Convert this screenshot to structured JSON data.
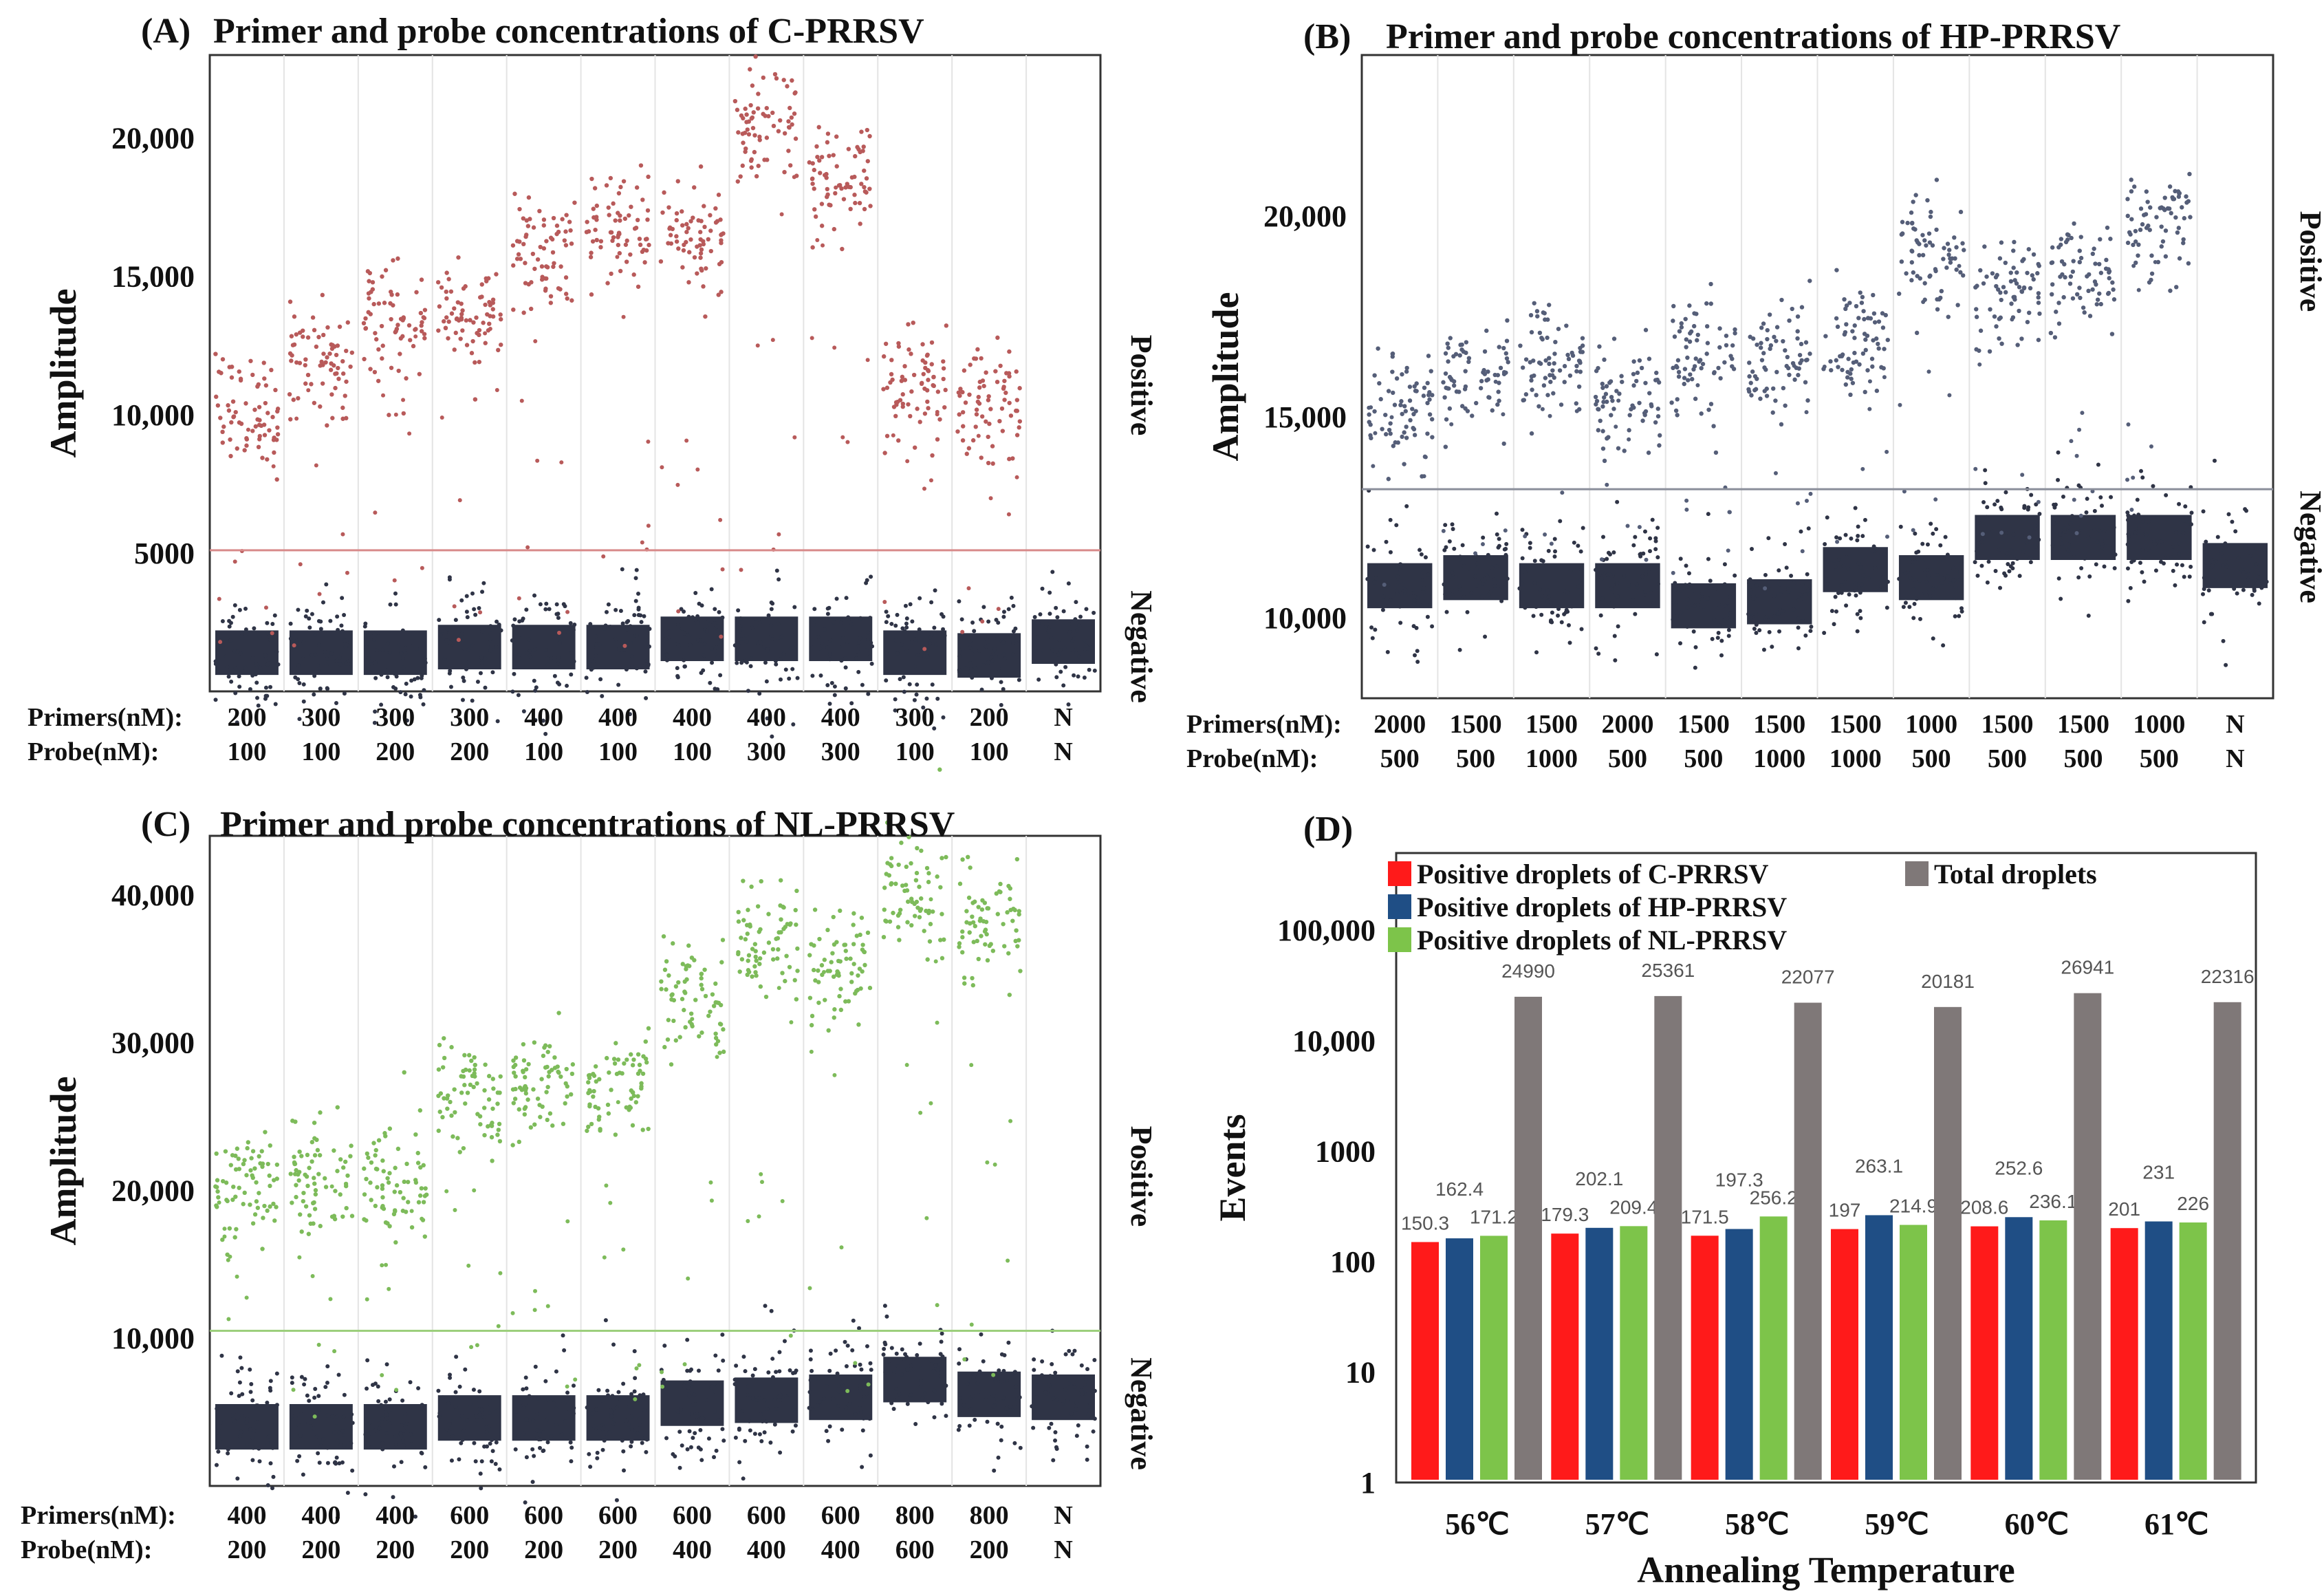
{
  "chart_data": [
    {
      "id": "A",
      "type": "scatter",
      "panel_label": "(A)",
      "title": "Primer and probe concentrations of C-PRRSV",
      "ylabel": "Amplitude",
      "ylim": [
        0,
        23000
      ],
      "yticks": [
        {
          "v": 5000,
          "t": "5000"
        },
        {
          "v": 10000,
          "t": "10,000"
        },
        {
          "v": 15000,
          "t": "15,000"
        },
        {
          "v": 20000,
          "t": "20,000"
        }
      ],
      "threshold": 5100,
      "positive_label": "Positive",
      "negative_label": "Negative",
      "row1_label": "Primers(nM):",
      "row2_label": "Probe(nM):",
      "primers": [
        "200",
        "300",
        "300",
        "300",
        "400",
        "400",
        "400",
        "400",
        "400",
        "300",
        "200",
        "N"
      ],
      "probes": [
        "100",
        "100",
        "200",
        "200",
        "100",
        "100",
        "100",
        "300",
        "300",
        "100",
        "100",
        "N"
      ],
      "positive_centers": [
        10000,
        12000,
        13500,
        13500,
        16000,
        16500,
        16500,
        20500,
        18500,
        11000,
        10500,
        null
      ],
      "negative_levels": [
        1400,
        1400,
        1400,
        1600,
        1600,
        1600,
        1900,
        1900,
        1900,
        1400,
        1300,
        1800
      ],
      "pos_color": "#b85a5a",
      "neg_color": "#2f3446",
      "line_color": "#d88a8a"
    },
    {
      "id": "B",
      "type": "scatter",
      "panel_label": "(B)",
      "title": "Primer and probe concentrations of HP-PRRSV",
      "ylabel": "Amplitude",
      "ylim": [
        8000,
        24000
      ],
      "yticks": [
        {
          "v": 10000,
          "t": "10,000"
        },
        {
          "v": 15000,
          "t": "15,000"
        },
        {
          "v": 20000,
          "t": "20,000"
        }
      ],
      "threshold": 13200,
      "positive_label": "Positive",
      "negative_label": "Negative",
      "row1_label": "Primers(nM):",
      "row2_label": "Probe(nM):",
      "primers": [
        "2000",
        "1500",
        "1500",
        "2000",
        "1500",
        "1500",
        "1500",
        "1000",
        "1500",
        "1500",
        "1000",
        "N"
      ],
      "probes": [
        "500",
        "500",
        "1000",
        "500",
        "500",
        "1000",
        "1000",
        "500",
        "500",
        "500",
        "500",
        "N"
      ],
      "positive_centers": [
        15300,
        16000,
        16500,
        15500,
        16500,
        16500,
        16800,
        19000,
        18000,
        18500,
        19800,
        null
      ],
      "negative_levels": [
        10800,
        11000,
        10800,
        10800,
        10300,
        10400,
        11200,
        11000,
        12000,
        12000,
        12000,
        11300
      ],
      "pos_color": "#555e78",
      "neg_color": "#2f3446",
      "line_color": "#8a8e9a"
    },
    {
      "id": "C",
      "type": "scatter",
      "panel_label": "(C)",
      "title": "Primer and probe concentrations of NL-PRRSV",
      "ylabel": "Amplitude",
      "ylim": [
        0,
        44000
      ],
      "yticks": [
        {
          "v": 10000,
          "t": "10,000"
        },
        {
          "v": 20000,
          "t": "20,000"
        },
        {
          "v": 30000,
          "t": "30,000"
        },
        {
          "v": 40000,
          "t": "40,000"
        }
      ],
      "threshold": 10500,
      "positive_label": "Positive",
      "negative_label": "Negative",
      "row1_label": "Primers(nM):",
      "row2_label": "Probe(nM):",
      "primers": [
        "400",
        "400",
        "400",
        "600",
        "600",
        "600",
        "600",
        "600",
        "600",
        "800",
        "800",
        "N"
      ],
      "probes": [
        "200",
        "200",
        "200",
        "200",
        "200",
        "200",
        "400",
        "400",
        "400",
        "600",
        "200",
        ""
      ],
      "probes_last": "N",
      "positive_centers": [
        20000,
        21000,
        20500,
        26500,
        27500,
        27000,
        33500,
        36500,
        35000,
        40000,
        38000,
        null
      ],
      "negative_levels": [
        4000,
        4000,
        4000,
        4600,
        4600,
        4600,
        5600,
        5800,
        6000,
        7200,
        6200,
        6000
      ],
      "pos_color": "#7dbb5a",
      "neg_color": "#2f3446",
      "line_color": "#9ccf7c"
    },
    {
      "id": "D",
      "type": "bar",
      "panel_label": "(D)",
      "ylabel": "Events",
      "xlabel": "Annealing Temperature",
      "yscale": "log",
      "ylim": [
        1,
        500000
      ],
      "yticks": [
        {
          "v": 1,
          "t": "1"
        },
        {
          "v": 10,
          "t": "10"
        },
        {
          "v": 100,
          "t": "100"
        },
        {
          "v": 1000,
          "t": "1000"
        },
        {
          "v": 10000,
          "t": "10,000"
        },
        {
          "v": 100000,
          "t": "100,000"
        }
      ],
      "categories": [
        "56℃",
        "57℃",
        "58℃",
        "59℃",
        "60℃",
        "61℃"
      ],
      "series": [
        {
          "name": "Positive droplets of C-PRRSV",
          "color": "#ff1a1a",
          "values": [
            150.3,
            179.3,
            171.5,
            197,
            208.6,
            201
          ],
          "labels": [
            "150.3",
            "179.3",
            "171.5",
            "197",
            "208.6",
            "201"
          ]
        },
        {
          "name": "Positive droplets of HP-PRRSV",
          "color": "#1f4e85",
          "values": [
            162.4,
            202.1,
            197.3,
            263.1,
            252.6,
            231
          ],
          "labels": [
            "162.4",
            "202.1",
            "197.3",
            "263.1",
            "252.6",
            "231"
          ]
        },
        {
          "name": "Positive droplets of NL-PRRSV",
          "color": "#7dc44a",
          "values": [
            171.2,
            209.4,
            256.2,
            214.9,
            236.1,
            226
          ],
          "labels": [
            "171.2",
            "209.4",
            "256.2",
            "214.9",
            "236.1",
            "226"
          ]
        },
        {
          "name": "Total droplets",
          "color": "#7f7878",
          "values": [
            24990,
            25361,
            22077,
            20181,
            26941,
            22316
          ],
          "labels": [
            "24990",
            "25361",
            "22077",
            "20181",
            "26941",
            "22316"
          ]
        }
      ],
      "legend_position": "top-left"
    }
  ]
}
